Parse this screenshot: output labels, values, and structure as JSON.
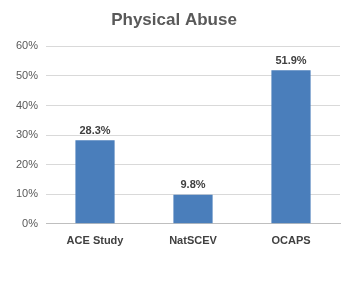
{
  "chart_data": {
    "type": "bar",
    "title": "Physical Abuse",
    "categories": [
      "ACE Study",
      "NatSCEV",
      "OCAPS"
    ],
    "values": [
      28.3,
      9.8,
      51.9
    ],
    "value_labels": [
      "28.3%",
      "9.8%",
      "51.9%"
    ],
    "color": "#4a7ebb",
    "ylim": [
      0,
      60
    ],
    "yticks": [
      {
        "value": 0,
        "label": "0%"
      },
      {
        "value": 10,
        "label": "10%"
      },
      {
        "value": 20,
        "label": "20%"
      },
      {
        "value": 30,
        "label": "30%"
      },
      {
        "value": 40,
        "label": "40%"
      },
      {
        "value": 50,
        "label": "50%"
      },
      {
        "value": 60,
        "label": "60%"
      }
    ],
    "grid": true,
    "data_labels": true
  }
}
